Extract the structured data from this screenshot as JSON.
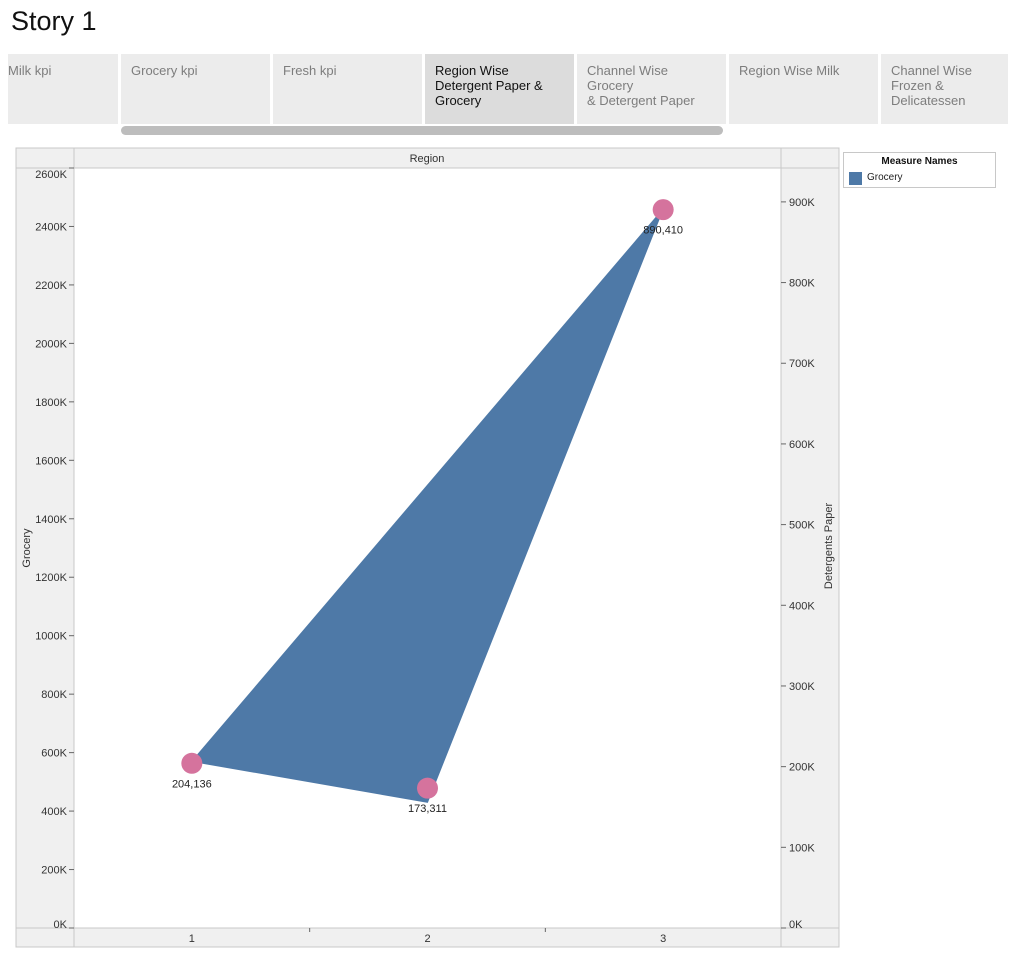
{
  "story_title": "Story 1",
  "tabs": [
    {
      "label_lines": [
        "Milk kpi"
      ]
    },
    {
      "label_lines": [
        "Grocery kpi"
      ]
    },
    {
      "label_lines": [
        "Fresh kpi"
      ]
    },
    {
      "label_lines": [
        "Region Wise",
        "Detergent Paper &",
        "Grocery"
      ],
      "active": true
    },
    {
      "label_lines": [
        "Channel Wise Grocery",
        "& Detergent Paper"
      ]
    },
    {
      "label_lines": [
        "Region Wise Milk"
      ]
    },
    {
      "label_lines": [
        "Channel Wise",
        "Frozen &",
        "Delicatessen"
      ]
    }
  ],
  "legend": {
    "title": "Measure Names",
    "items": [
      {
        "label": "Grocery",
        "color": "#4e79a7"
      }
    ]
  },
  "chart_data": {
    "type": "area",
    "column_header": "Region",
    "xlabel": "",
    "categories": [
      "1",
      "2",
      "3"
    ],
    "y_left": {
      "label": "Grocery",
      "range": [
        0,
        2600000
      ],
      "ticks": [
        0,
        200000,
        400000,
        600000,
        800000,
        1000000,
        1200000,
        1400000,
        1600000,
        1800000,
        2000000,
        2200000,
        2400000,
        2600000
      ],
      "tick_labels": [
        "0K",
        "200K",
        "400K",
        "600K",
        "800K",
        "1000K",
        "1200K",
        "1400K",
        "1600K",
        "1800K",
        "2000K",
        "2200K",
        "2400K",
        "2600K"
      ]
    },
    "y_right": {
      "label": "Detergents Paper",
      "range": [
        0,
        942000
      ],
      "ticks": [
        0,
        100000,
        200000,
        300000,
        400000,
        500000,
        600000,
        700000,
        800000,
        900000
      ],
      "tick_labels": [
        "0K",
        "100K",
        "200K",
        "300K",
        "400K",
        "500K",
        "600K",
        "700K",
        "800K",
        "900K"
      ]
    },
    "series": [
      {
        "name": "Grocery",
        "axis": "left",
        "mark": "area",
        "color": "#4e79a7",
        "values": [
          570000,
          430000,
          2460000
        ]
      },
      {
        "name": "Detergents Paper",
        "axis": "right",
        "mark": "circle",
        "color": "#d5739d",
        "values": [
          204136,
          173311,
          890410
        ],
        "data_labels": [
          "204,136",
          "173,311",
          "890,410"
        ]
      }
    ],
    "grid": false
  }
}
